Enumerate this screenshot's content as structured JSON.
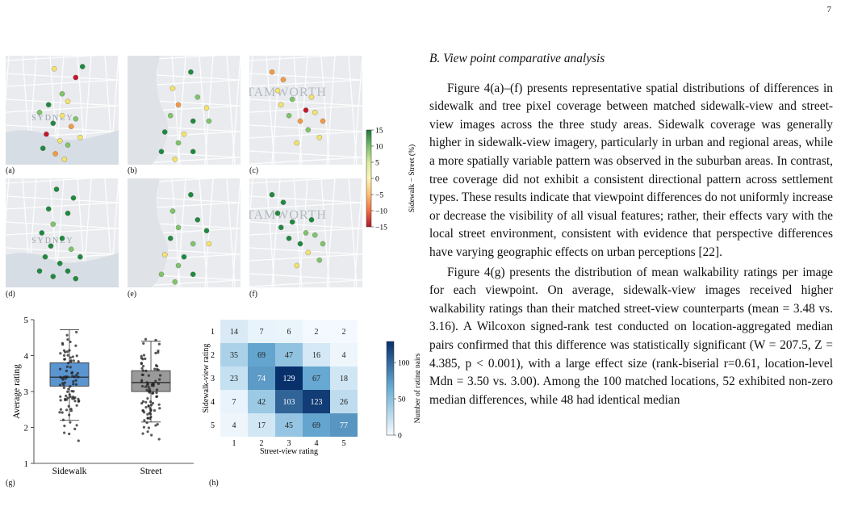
{
  "page": {
    "number": "7"
  },
  "maps": {
    "panel_labels": [
      "(a)",
      "(b)",
      "(c)",
      "(d)",
      "(e)",
      "(f)"
    ],
    "place_labels": {
      "sydney": "SYDNEY",
      "tamworth": "TAMWORTH"
    },
    "colorbar": {
      "label": "Sidewalk − Street (%)",
      "ticks": [
        "15",
        "10",
        "5",
        "0",
        "−5",
        "−10",
        "−15"
      ],
      "colors": [
        "#1a7a3a",
        "#79c06b",
        "#d7ec9b",
        "#fff4b8",
        "#fdbf6f",
        "#f46d43",
        "#b2182b"
      ]
    },
    "dots": {
      "a": [
        [
          0.43,
          0.12,
          "y"
        ],
        [
          0.62,
          0.2,
          "r"
        ],
        [
          0.68,
          0.1,
          "g"
        ],
        [
          0.5,
          0.35,
          "lg"
        ],
        [
          0.55,
          0.42,
          "y"
        ],
        [
          0.38,
          0.45,
          "g"
        ],
        [
          0.3,
          0.52,
          "lg"
        ],
        [
          0.5,
          0.55,
          "y"
        ],
        [
          0.42,
          0.62,
          "g"
        ],
        [
          0.58,
          0.65,
          "o"
        ],
        [
          0.36,
          0.72,
          "r"
        ],
        [
          0.48,
          0.78,
          "y"
        ],
        [
          0.55,
          0.82,
          "lg"
        ],
        [
          0.44,
          0.9,
          "o"
        ],
        [
          0.52,
          0.95,
          "y"
        ],
        [
          0.62,
          0.58,
          "lg"
        ],
        [
          0.66,
          0.75,
          "y"
        ],
        [
          0.33,
          0.85,
          "g"
        ]
      ],
      "b": [
        [
          0.56,
          0.15,
          "g"
        ],
        [
          0.4,
          0.3,
          "y"
        ],
        [
          0.62,
          0.38,
          "lg"
        ],
        [
          0.45,
          0.45,
          "o"
        ],
        [
          0.7,
          0.48,
          "y"
        ],
        [
          0.38,
          0.55,
          "lg"
        ],
        [
          0.58,
          0.6,
          "g"
        ],
        [
          0.33,
          0.7,
          "g"
        ],
        [
          0.5,
          0.72,
          "y"
        ],
        [
          0.45,
          0.8,
          "lg"
        ],
        [
          0.3,
          0.88,
          "g"
        ],
        [
          0.58,
          0.88,
          "g"
        ],
        [
          0.72,
          0.6,
          "lg"
        ],
        [
          0.42,
          0.95,
          "y"
        ]
      ],
      "c": [
        [
          0.2,
          0.15,
          "o"
        ],
        [
          0.3,
          0.22,
          "o"
        ],
        [
          0.25,
          0.32,
          "y"
        ],
        [
          0.38,
          0.4,
          "lg"
        ],
        [
          0.5,
          0.5,
          "r"
        ],
        [
          0.45,
          0.6,
          "o"
        ],
        [
          0.58,
          0.52,
          "y"
        ],
        [
          0.52,
          0.68,
          "lg"
        ],
        [
          0.62,
          0.75,
          "y"
        ],
        [
          0.42,
          0.8,
          "y"
        ],
        [
          0.35,
          0.55,
          "lg"
        ],
        [
          0.28,
          0.45,
          "y"
        ],
        [
          0.65,
          0.6,
          "o"
        ],
        [
          0.55,
          0.38,
          "y"
        ]
      ],
      "d": [
        [
          0.45,
          0.1,
          "g"
        ],
        [
          0.6,
          0.18,
          "g"
        ],
        [
          0.38,
          0.28,
          "g"
        ],
        [
          0.55,
          0.32,
          "g"
        ],
        [
          0.42,
          0.42,
          "lg"
        ],
        [
          0.32,
          0.5,
          "g"
        ],
        [
          0.5,
          0.55,
          "g"
        ],
        [
          0.4,
          0.62,
          "g"
        ],
        [
          0.58,
          0.65,
          "lg"
        ],
        [
          0.35,
          0.72,
          "g"
        ],
        [
          0.48,
          0.78,
          "g"
        ],
        [
          0.55,
          0.85,
          "g"
        ],
        [
          0.42,
          0.9,
          "g"
        ],
        [
          0.3,
          0.85,
          "g"
        ],
        [
          0.62,
          0.92,
          "g"
        ],
        [
          0.66,
          0.72,
          "g"
        ]
      ],
      "e": [
        [
          0.56,
          0.15,
          "g"
        ],
        [
          0.4,
          0.3,
          "lg"
        ],
        [
          0.62,
          0.38,
          "g"
        ],
        [
          0.45,
          0.45,
          "lg"
        ],
        [
          0.7,
          0.48,
          "g"
        ],
        [
          0.38,
          0.55,
          "g"
        ],
        [
          0.58,
          0.6,
          "lg"
        ],
        [
          0.33,
          0.7,
          "y"
        ],
        [
          0.5,
          0.72,
          "g"
        ],
        [
          0.45,
          0.8,
          "lg"
        ],
        [
          0.3,
          0.88,
          "lg"
        ],
        [
          0.58,
          0.88,
          "g"
        ],
        [
          0.72,
          0.6,
          "y"
        ],
        [
          0.42,
          0.95,
          "lg"
        ]
      ],
      "f": [
        [
          0.2,
          0.15,
          "g"
        ],
        [
          0.3,
          0.22,
          "g"
        ],
        [
          0.25,
          0.32,
          "g"
        ],
        [
          0.38,
          0.4,
          "g"
        ],
        [
          0.5,
          0.5,
          "lg"
        ],
        [
          0.45,
          0.6,
          "g"
        ],
        [
          0.58,
          0.52,
          "lg"
        ],
        [
          0.52,
          0.68,
          "y"
        ],
        [
          0.62,
          0.75,
          "lg"
        ],
        [
          0.42,
          0.8,
          "y"
        ],
        [
          0.35,
          0.55,
          "g"
        ],
        [
          0.28,
          0.45,
          "g"
        ],
        [
          0.65,
          0.6,
          "lg"
        ],
        [
          0.55,
          0.38,
          "g"
        ]
      ]
    }
  },
  "chart_data": [
    {
      "type": "box",
      "panel_label": "(g)",
      "categories": [
        "Sidewalk",
        "Street"
      ],
      "ylabel": "Average rating",
      "xlabel": "",
      "ylim": [
        1,
        5
      ],
      "yticks": [
        "1",
        "2",
        "3",
        "4",
        "5"
      ],
      "boxes": [
        {
          "name": "Sidewalk",
          "whisker_low": 2.2,
          "q1": 3.15,
          "median": 3.4,
          "q3": 3.8,
          "whisker_high": 4.72,
          "color": "#5b95cf"
        },
        {
          "name": "Street",
          "whisker_low": 2.15,
          "q1": 3.0,
          "median": 3.25,
          "q3": 3.58,
          "whisker_high": 4.4,
          "color": "#9a9a9a"
        }
      ]
    },
    {
      "type": "heatmap",
      "panel_label": "(h)",
      "xlabel": "Street-view rating",
      "ylabel": "Sidewalk-view rating",
      "x": [
        "1",
        "2",
        "3",
        "4",
        "5"
      ],
      "y": [
        "1",
        "2",
        "3",
        "4",
        "5"
      ],
      "values": [
        [
          14,
          7,
          6,
          2,
          2
        ],
        [
          35,
          69,
          47,
          16,
          4
        ],
        [
          23,
          74,
          129,
          67,
          18
        ],
        [
          7,
          42,
          103,
          123,
          26
        ],
        [
          4,
          17,
          45,
          69,
          77
        ]
      ],
      "colorbar": {
        "label": "Number of rating pairs",
        "ticks": [
          "0",
          "50",
          "100"
        ],
        "max": 129
      }
    }
  ],
  "text": {
    "heading": "B. View point comparative analysis",
    "para1": "Figure 4(a)–(f) presents representative spatial distributions of differences in sidewalk and tree pixel coverage between matched sidewalk-view and street-view images across the three study areas. Sidewalk coverage was generally higher in sidewalk-view imagery, particularly in urban and regional areas, while a more spatially variable pattern was observed in the suburban areas. In contrast, tree coverage did not exhibit a consistent directional pattern across settlement types. These results indicate that viewpoint differences do not uniformly increase or decrease the visibility of all visual features; rather, their effects vary with the local street environment, consistent with evidence that perspective differences have varying geographic effects on urban perceptions [22].",
    "para2": "Figure 4(g) presents the distribution of mean walkability ratings per image for each viewpoint. On average, sidewalk-view images received higher walkability ratings than their matched street-view counterparts (mean = 3.48 vs. 3.16). A Wilcoxon signed-rank test conducted on location-aggregated median pairs confirmed that this difference was statistically significant (W = 207.5, Z = 4.385, p < 0.001), with a large effect size (rank-biserial r=0.61, location-level Mdn = 3.50 vs. 3.00). Among the 100 matched locations, 52 exhibited non-zero median differences, while 48 had identical median"
  }
}
